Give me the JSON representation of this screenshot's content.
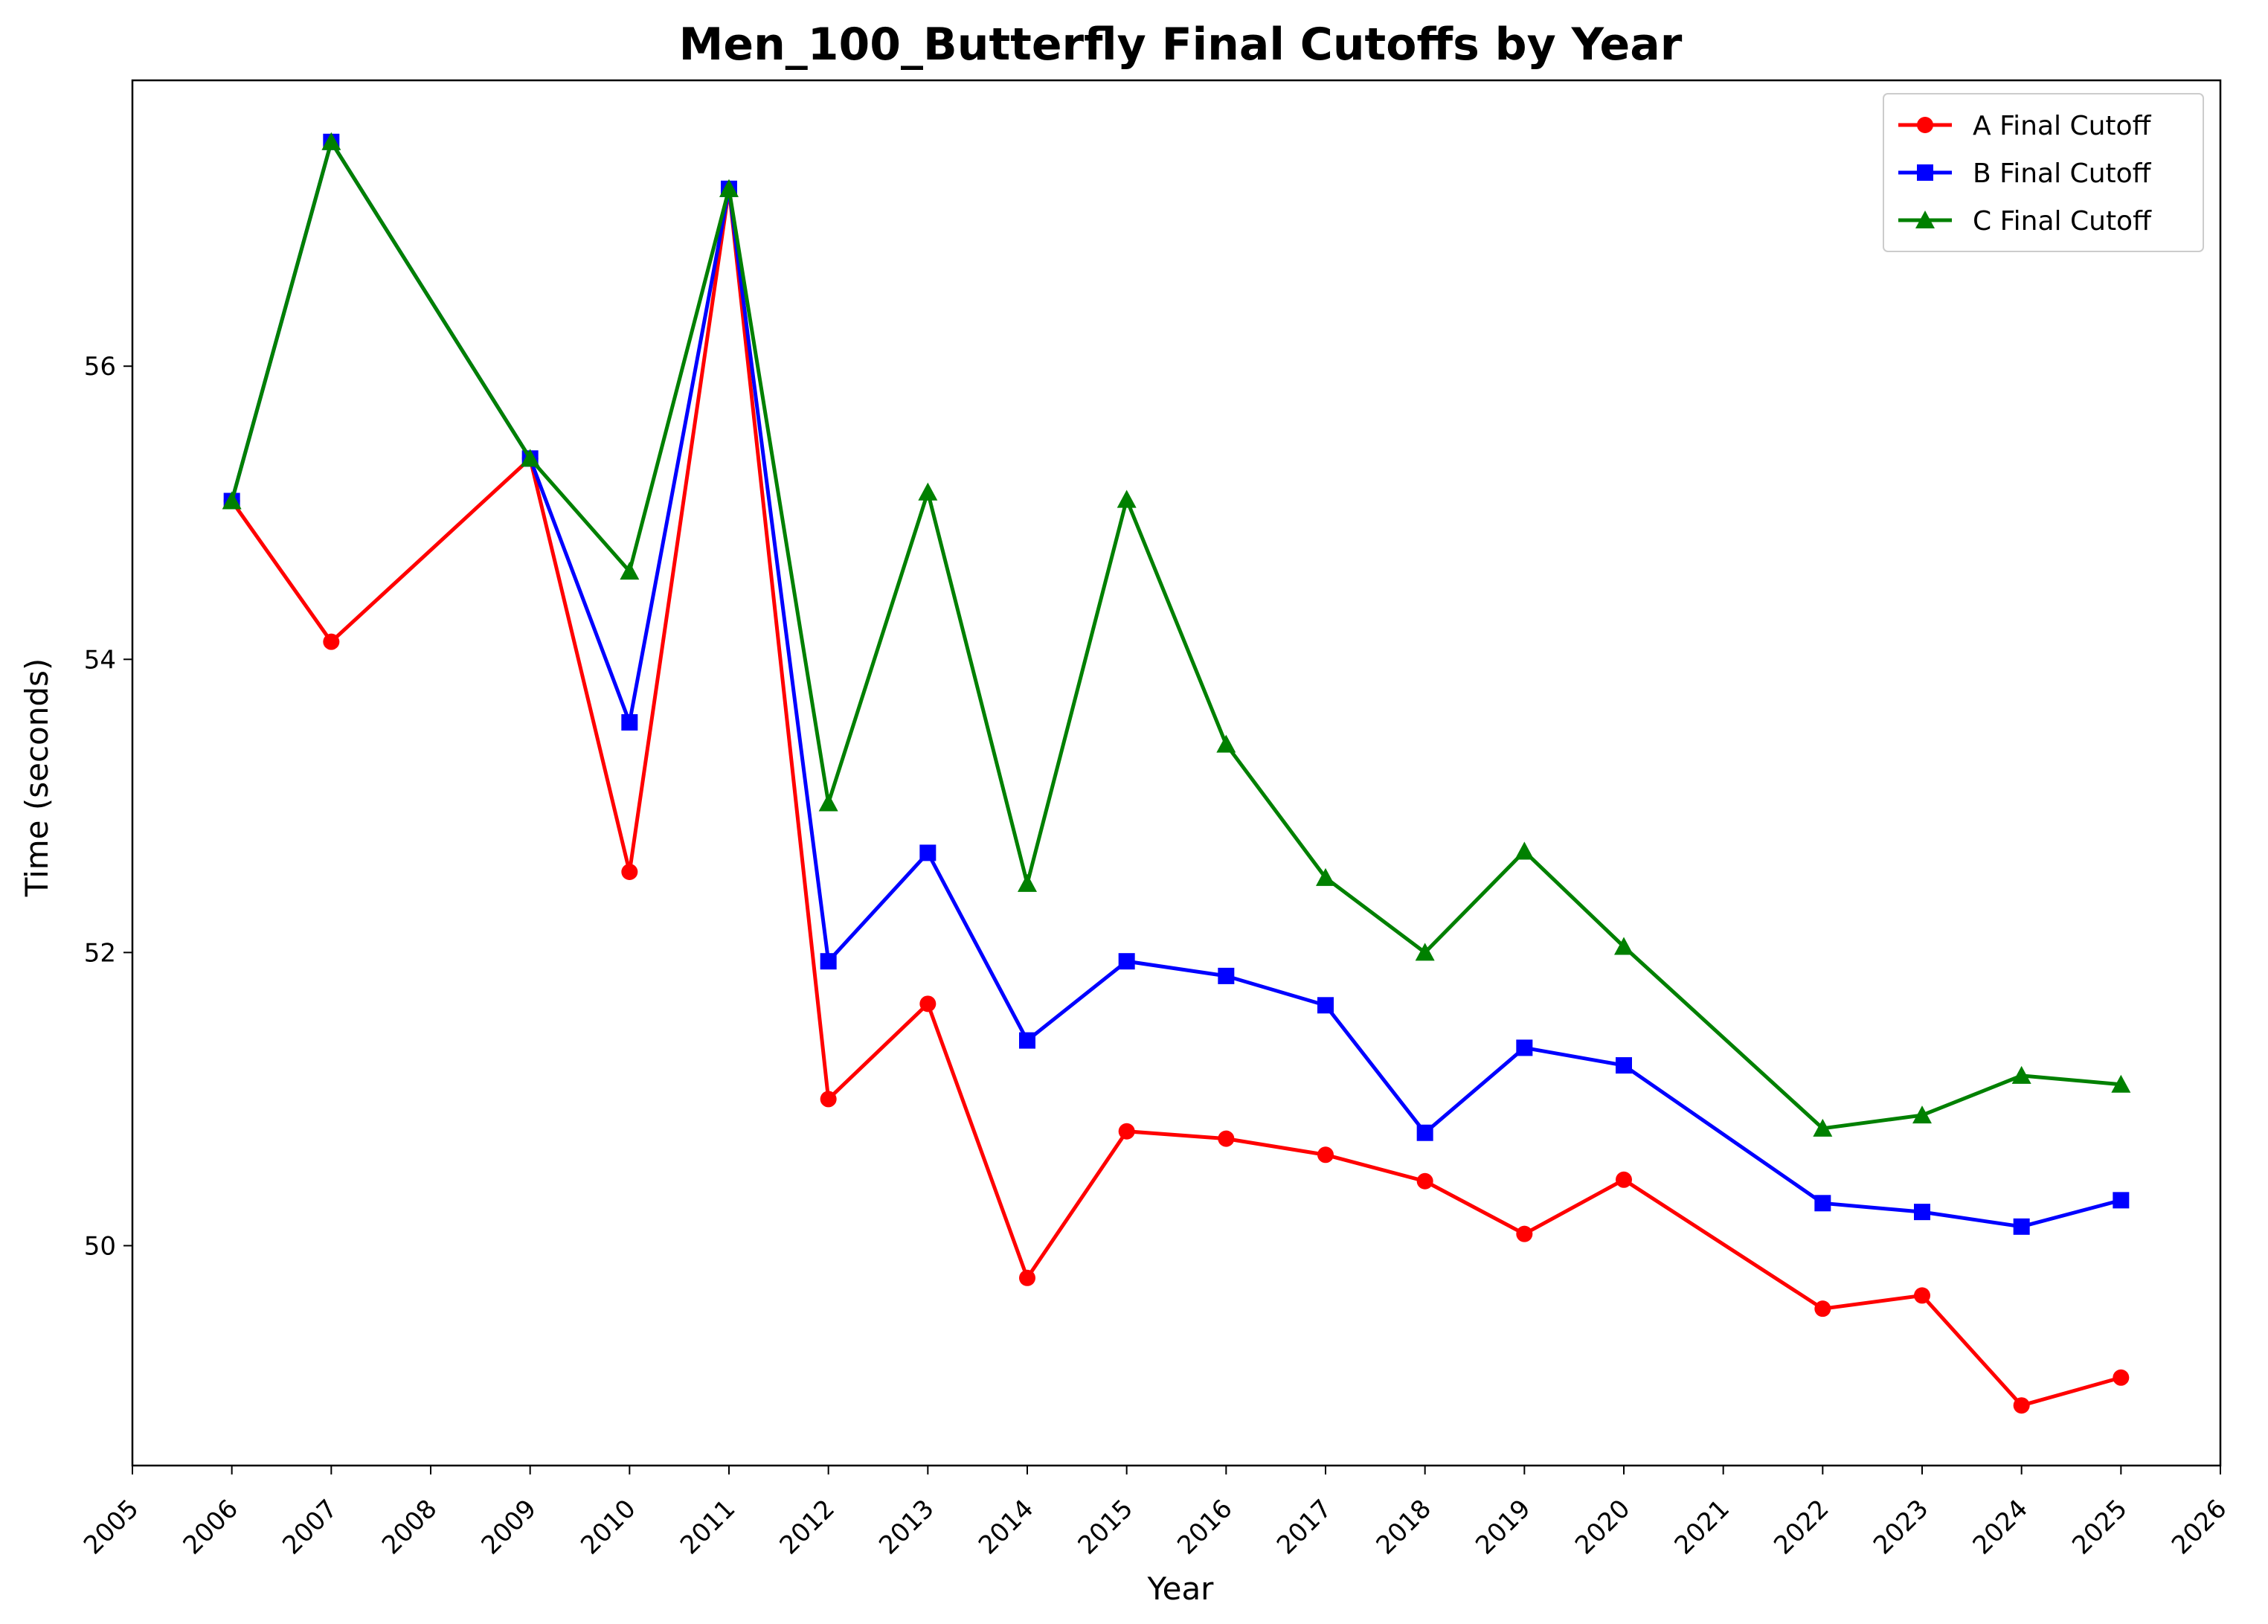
{
  "chart_data": {
    "type": "line",
    "title": "Men_100_Butterfly Final Cutoffs by Year",
    "xlabel": "Year",
    "ylabel": "Time (seconds)",
    "xlim": [
      2005,
      2026
    ],
    "ylim": [
      48.5,
      57.95
    ],
    "x_ticks": [
      2005,
      2006,
      2007,
      2008,
      2009,
      2010,
      2011,
      2012,
      2013,
      2014,
      2015,
      2016,
      2017,
      2018,
      2019,
      2020,
      2021,
      2022,
      2023,
      2024,
      2025,
      2026
    ],
    "y_ticks": [
      50,
      52,
      54,
      56
    ],
    "grid": false,
    "legend_position": "top-right",
    "x": [
      2006,
      2007,
      2009,
      2010,
      2011,
      2012,
      2013,
      2014,
      2015,
      2016,
      2017,
      2018,
      2019,
      2020,
      2022,
      2023,
      2024,
      2025
    ],
    "series": [
      {
        "name": "A Final Cutoff",
        "color": "#ff0000",
        "marker": "circle",
        "values": [
          55.08,
          54.12,
          55.37,
          52.55,
          57.21,
          51.0,
          51.65,
          49.78,
          50.78,
          50.73,
          50.62,
          50.44,
          50.08,
          50.45,
          49.57,
          49.66,
          48.91,
          49.1
        ]
      },
      {
        "name": "B Final Cutoff",
        "color": "#0000ff",
        "marker": "square",
        "values": [
          55.08,
          57.53,
          55.37,
          53.57,
          57.21,
          51.94,
          52.68,
          51.4,
          51.94,
          51.84,
          51.64,
          50.77,
          51.35,
          51.23,
          50.29,
          50.23,
          50.13,
          50.31
        ]
      },
      {
        "name": "C Final Cutoff",
        "color": "#008000",
        "marker": "triangle",
        "values": [
          55.08,
          57.53,
          55.37,
          54.6,
          57.21,
          53.02,
          55.14,
          52.47,
          55.09,
          53.42,
          52.51,
          52.0,
          52.69,
          52.04,
          50.8,
          50.89,
          51.16,
          51.1
        ]
      }
    ]
  }
}
